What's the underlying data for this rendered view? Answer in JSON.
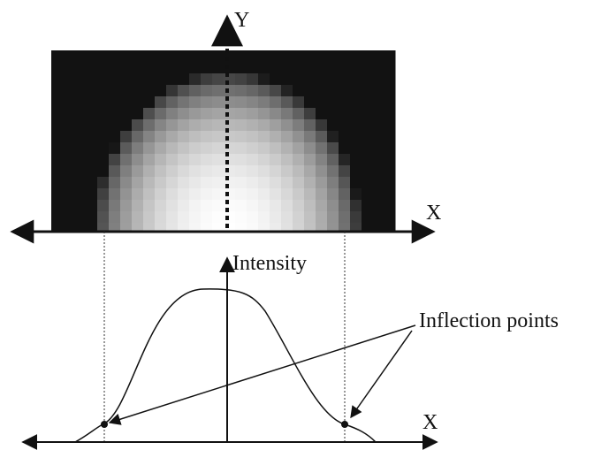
{
  "top_axis_y_label": "Y",
  "top_axis_x_label": "X",
  "intensity_label": "Intensity",
  "annotation": "Inflection points",
  "bottom_axis_x_label": "X"
}
